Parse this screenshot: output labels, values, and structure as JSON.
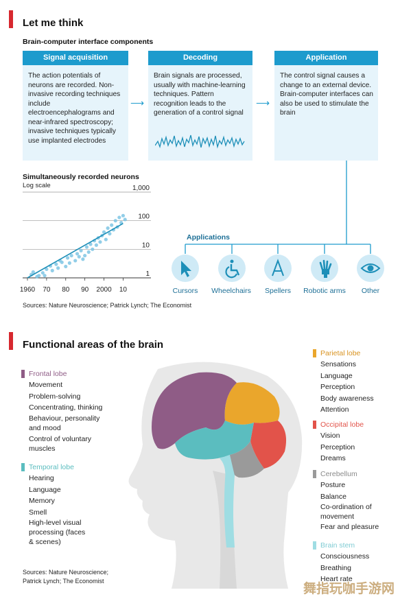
{
  "section1": {
    "title": "Let me think",
    "subtitle": "Brain-computer interface components",
    "panels": [
      {
        "head": "Signal acquisition",
        "text": "The action potentials of neurons are recorded. Non-invasive recording techniques include electroencephalograms and near-infrared spectroscopy; invasive techniques typically use implanted electrodes"
      },
      {
        "head": "Decoding",
        "text": "Brain signals are processed, usually with machine-learning techniques. Pattern recognition leads to the generation of a control signal"
      },
      {
        "head": "Application",
        "text": "The control signal causes a change to an external device. Brain-computer interfaces can also be used to stimulate the brain"
      }
    ],
    "chart_title": "Simultaneously recorded neurons",
    "chart_sub": "Log scale",
    "applications_label": "Applications",
    "applications": [
      {
        "label": "Cursors",
        "icon": "cursor-icon"
      },
      {
        "label": "Wheelchairs",
        "icon": "wheelchair-icon"
      },
      {
        "label": "Spellers",
        "icon": "letter-a-icon"
      },
      {
        "label": "Robotic arms",
        "icon": "robotic-hand-icon"
      },
      {
        "label": "Other",
        "icon": "eye-icon"
      }
    ],
    "source": "Sources: Nature Neuroscience; Patrick Lynch; The Economist"
  },
  "chart_data": {
    "type": "scatter",
    "title": "Simultaneously recorded neurons",
    "subtitle": "Log scale",
    "x_ticks": [
      "1960",
      "70",
      "80",
      "90",
      "2000",
      "10"
    ],
    "y_ticks": [
      "1",
      "10",
      "100",
      "1,000"
    ],
    "y_scale": "log",
    "xlim": [
      1960,
      2012
    ],
    "ylim": [
      1,
      1000
    ],
    "trend": {
      "x": [
        1960,
        2010
      ],
      "y": [
        1,
        80
      ]
    },
    "points": [
      {
        "x": 1962,
        "y": 1.3
      },
      {
        "x": 1963,
        "y": 1.6
      },
      {
        "x": 1965,
        "y": 1.1
      },
      {
        "x": 1966,
        "y": 1.2
      },
      {
        "x": 1968,
        "y": 1.5
      },
      {
        "x": 1969,
        "y": 1.2
      },
      {
        "x": 1970,
        "y": 2
      },
      {
        "x": 1972,
        "y": 2.6
      },
      {
        "x": 1973,
        "y": 1.8
      },
      {
        "x": 1975,
        "y": 3
      },
      {
        "x": 1976,
        "y": 2.2
      },
      {
        "x": 1977,
        "y": 4
      },
      {
        "x": 1978,
        "y": 3.5
      },
      {
        "x": 1980,
        "y": 2.5
      },
      {
        "x": 1981,
        "y": 5
      },
      {
        "x": 1982,
        "y": 3.3
      },
      {
        "x": 1983,
        "y": 6
      },
      {
        "x": 1985,
        "y": 4
      },
      {
        "x": 1986,
        "y": 7
      },
      {
        "x": 1987,
        "y": 5.5
      },
      {
        "x": 1988,
        "y": 9
      },
      {
        "x": 1989,
        "y": 4.5
      },
      {
        "x": 1990,
        "y": 6
      },
      {
        "x": 1991,
        "y": 12
      },
      {
        "x": 1992,
        "y": 8
      },
      {
        "x": 1993,
        "y": 15
      },
      {
        "x": 1994,
        "y": 10
      },
      {
        "x": 1995,
        "y": 20
      },
      {
        "x": 1996,
        "y": 14
      },
      {
        "x": 1997,
        "y": 25
      },
      {
        "x": 1998,
        "y": 18
      },
      {
        "x": 1999,
        "y": 30
      },
      {
        "x": 2000,
        "y": 40
      },
      {
        "x": 2001,
        "y": 22
      },
      {
        "x": 2002,
        "y": 55
      },
      {
        "x": 2003,
        "y": 35
      },
      {
        "x": 2004,
        "y": 70
      },
      {
        "x": 2005,
        "y": 48
      },
      {
        "x": 2006,
        "y": 100
      },
      {
        "x": 2007,
        "y": 60
      },
      {
        "x": 2008,
        "y": 130
      },
      {
        "x": 2009,
        "y": 85
      },
      {
        "x": 2010,
        "y": 150
      },
      {
        "x": 2011,
        "y": 110
      }
    ]
  },
  "section2": {
    "title": "Functional areas of the brain",
    "lobes_left": [
      {
        "name": "Frontal lobe",
        "color": "#8f5c86",
        "items": [
          "Movement",
          "Problem-solving",
          "Concentrating, thinking",
          "Behaviour, personality and mood",
          "Control of voluntary muscles"
        ]
      },
      {
        "name": "Temporal lobe",
        "color": "#5bbdbf",
        "items": [
          "Hearing",
          "Language",
          "Memory",
          "Smell",
          "High-level visual processing (faces & scenes)"
        ]
      }
    ],
    "lobes_right": [
      {
        "name": "Parietal lobe",
        "color": "#eaa62c",
        "items": [
          "Sensations",
          "Language",
          "Perception",
          "Body awareness",
          "Attention"
        ]
      },
      {
        "name": "Occipital lobe",
        "color": "#e2534a",
        "items": [
          "Vision",
          "Perception",
          "Dreams"
        ]
      },
      {
        "name": "Cerebellum",
        "color": "#9a9a9a",
        "items": [
          "Posture",
          "Balance",
          "Co-ordination of movement",
          "Fear and pleasure"
        ]
      },
      {
        "name": "Brain stem",
        "color": "#9fdde3",
        "items": [
          "Consciousness",
          "Breathing",
          "Heart rate"
        ]
      }
    ],
    "source": "Sources: Nature Neuroscience; Patrick Lynch; The Economist",
    "watermark": "舞指玩咖手游网"
  }
}
